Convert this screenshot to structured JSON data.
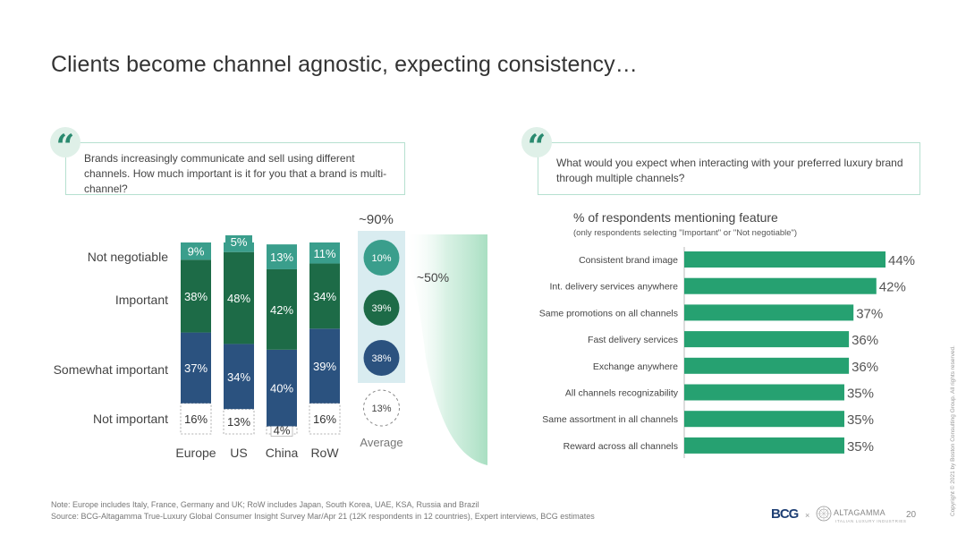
{
  "slide": {
    "title": "Clients become channel agnostic, expecting consistency…",
    "page_number": "20",
    "note": "Note: Europe includes Italy, France, Germany and UK; RoW includes Japan, South Korea, UAE, KSA, Russia and Brazil",
    "source": "Source: BCG-Altagamma True-Luxury Global Consumer Insight Survey Mar/Apr 21 (12K respondents in 12 countries), Expert interviews, BCG estimates",
    "copyright": "Copyright © 2021 by Boston Consulting Group. All rights reserved.",
    "logos": {
      "bcg": "BCG",
      "separator": "×",
      "altagamma": "ALTAGAMMA",
      "altagamma_sub": "ITALIAN LUXURY INDUSTRIES",
      "quote_glyph": "“"
    }
  },
  "questions": {
    "left": "Brands increasingly communicate and sell using different channels. How much important is it for you that a brand is multi-channel?",
    "right": "What would you expect when interacting with your preferred luxury brand through multiple channels?"
  },
  "chart_data": [
    {
      "type": "bar",
      "stacked": true,
      "categories": [
        "Europe",
        "US",
        "China",
        "RoW"
      ],
      "series": [
        {
          "name": "Not important",
          "values": [
            16,
            13,
            4,
            16
          ],
          "color": "#ffffff"
        },
        {
          "name": "Somewhat important",
          "values": [
            37,
            34,
            40,
            39
          ],
          "color": "#2b527f"
        },
        {
          "name": "Important",
          "values": [
            38,
            48,
            42,
            34
          ],
          "color": "#1d6b47"
        },
        {
          "name": "Not negotiable",
          "values": [
            9,
            5,
            13,
            11
          ],
          "color": "#3a9e8c"
        }
      ],
      "value_suffix": "%",
      "average": {
        "label": "Average",
        "values": [
          13,
          38,
          39,
          10
        ],
        "total_label": "~90%"
      },
      "annotation": "~50%",
      "ylim": [
        0,
        100
      ]
    },
    {
      "type": "bar",
      "orientation": "horizontal",
      "title": "% of respondents mentioning feature",
      "subtitle": "(only respondents selecting \"Important\" or \"Not negotiable\")",
      "categories": [
        "Consistent brand image",
        "Int. delivery services anywhere",
        "Same promotions on all channels",
        "Fast delivery services",
        "Exchange anywhere",
        "All channels recognizability",
        "Same assortment in all channels",
        "Reward across all channels"
      ],
      "values": [
        44,
        42,
        37,
        36,
        36,
        35,
        35,
        35
      ],
      "value_suffix": "%",
      "color": "#26a171",
      "xlim": [
        0,
        44
      ]
    }
  ]
}
